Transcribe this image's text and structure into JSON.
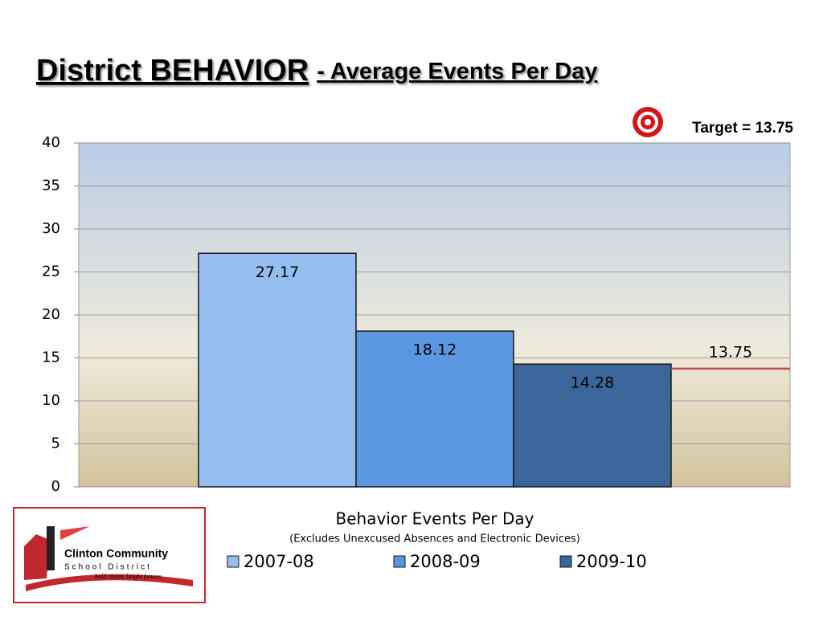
{
  "chart_data": {
    "type": "bar",
    "title": "District BEHAVIOR",
    "subtitle": "- Average Events Per Day",
    "x_label": "Behavior Events Per Day",
    "x_note": "(Excludes Unexcused Absences and Electronic Devices)",
    "categories": [
      null
    ],
    "series": [
      {
        "name": "2007-08",
        "color": "#95bdf0",
        "values": [
          27.17
        ]
      },
      {
        "name": "2008-09",
        "color": "#5b97e0",
        "values": [
          18.12
        ]
      },
      {
        "name": "2009-10",
        "color": "#3b6699",
        "values": [
          14.28
        ]
      }
    ],
    "target": {
      "value": 13.75,
      "label": "Target = 13.75",
      "color": "#c0504d"
    },
    "ylim": [
      0,
      40
    ],
    "yticks": [
      0,
      5,
      10,
      15,
      20,
      25,
      30,
      35,
      40
    ],
    "grid": true,
    "legend": "bottom"
  },
  "logo": {
    "name": "Clinton Community",
    "district": "School District",
    "tagline": "bold vision. bright futures."
  }
}
